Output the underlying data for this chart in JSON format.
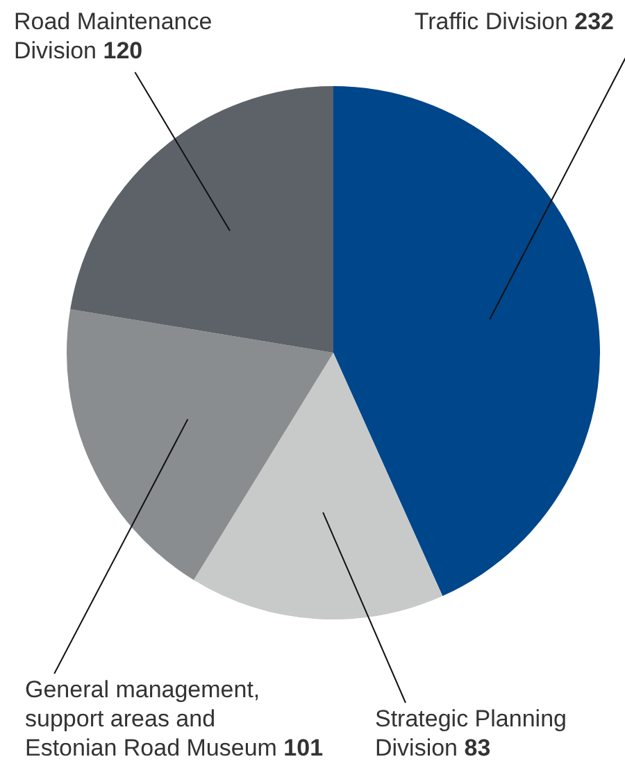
{
  "chart_data": {
    "type": "pie",
    "categories": [
      "Traffic Division",
      "Strategic Planning Division",
      "General management, support areas and Estonian Road Museum",
      "Road Maintenance Division"
    ],
    "values": [
      232,
      83,
      101,
      120
    ],
    "colors": [
      "#00468b",
      "#c8cac9",
      "#8a8d90",
      "#5d6268"
    ],
    "data_labels": true,
    "legend": false
  }
}
